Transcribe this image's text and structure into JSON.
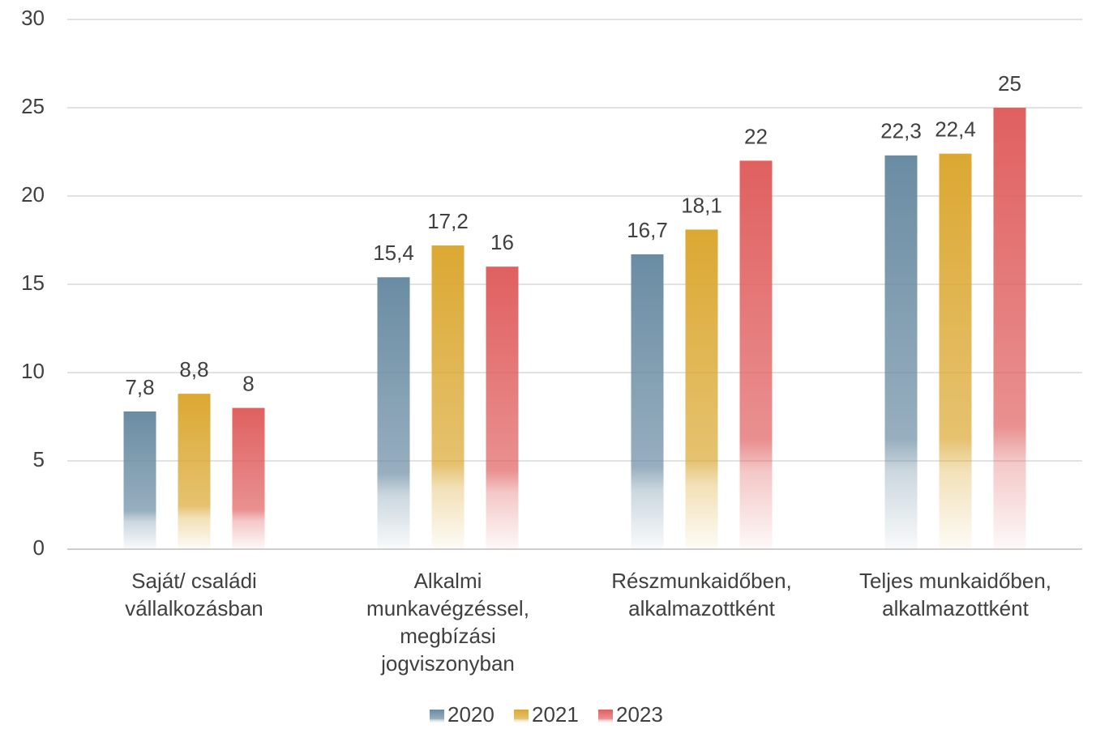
{
  "chart_data": {
    "type": "bar",
    "categories": [
      "Saját/ családi\nvállalkozásban",
      "Alkalmi\nmunkavégzéssel,\nmegbízási\njogviszonyban",
      "Részmunkaidőben,\nalkalmazottként",
      "Teljes munkaidőben,\nalkalmazottként"
    ],
    "series": [
      {
        "name": "2020",
        "color": "#6a8ca3",
        "values": [
          7.8,
          15.4,
          16.7,
          22.3
        ],
        "value_labels": [
          "7,8",
          "15,4",
          "16,7",
          "22,3"
        ]
      },
      {
        "name": "2021",
        "color": "#dba832",
        "values": [
          8.8,
          17.2,
          18.1,
          22.4
        ],
        "value_labels": [
          "8,8",
          "17,2",
          "18,1",
          "22,4"
        ]
      },
      {
        "name": "2023",
        "color": "#e06060",
        "values": [
          8,
          16,
          22,
          25
        ],
        "value_labels": [
          "8",
          "16",
          "22",
          "25"
        ]
      }
    ],
    "ylim": [
      0,
      30
    ],
    "yticks": [
      0,
      5,
      10,
      15,
      20,
      25,
      30
    ],
    "grid": true,
    "legend": "bottom"
  }
}
